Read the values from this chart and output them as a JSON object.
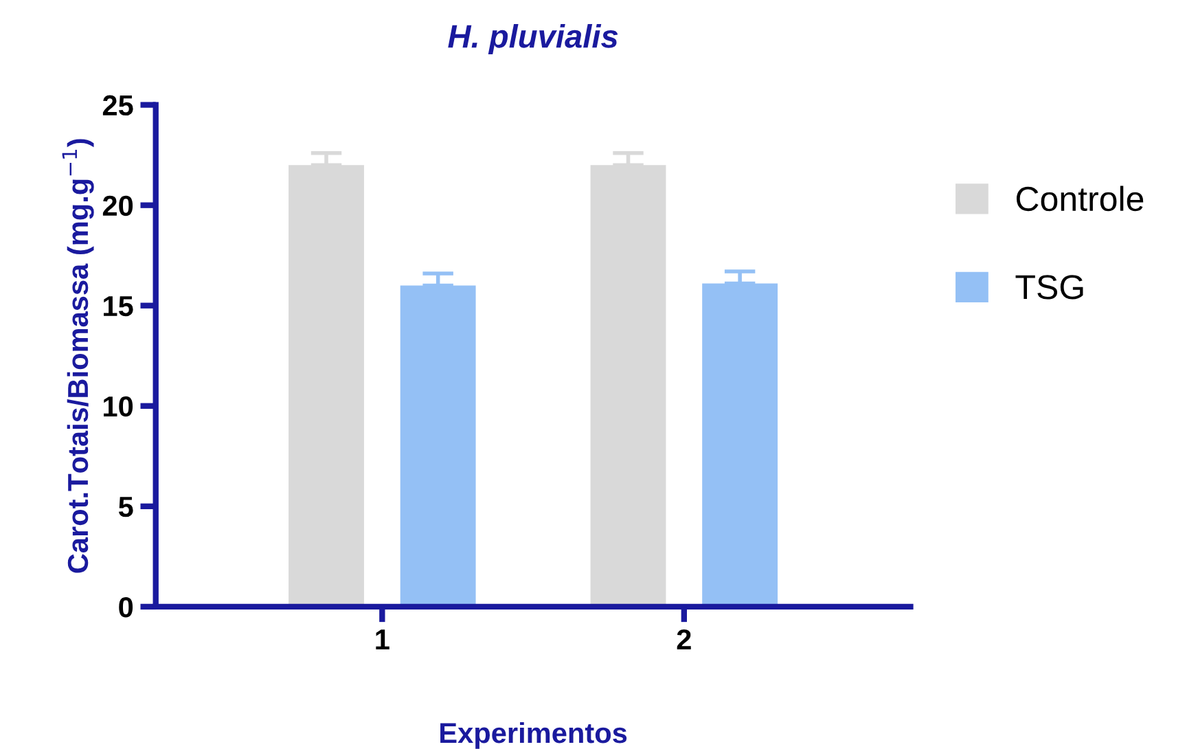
{
  "chart_data": {
    "type": "bar",
    "title": "H. pluvialis",
    "xlabel": "Experimentos",
    "ylabel": "Carot.Totais/Biomassa (mg.g$^{−1}$)",
    "categories": [
      "1",
      "2"
    ],
    "series": [
      {
        "name": "Controle",
        "color": "#d9d9d9",
        "values": [
          22.0,
          22.0
        ],
        "errors": [
          [
            22.0,
            22.6
          ],
          [
            22.0,
            22.6
          ]
        ]
      },
      {
        "name": "TSG",
        "color": "#94c0f5",
        "values": [
          16.0,
          16.1
        ],
        "errors": [
          [
            16.0,
            16.6
          ],
          [
            16.1,
            16.7
          ]
        ]
      }
    ],
    "ylim": [
      0,
      25
    ],
    "yticks": [
      0,
      5,
      10,
      15,
      20,
      25
    ],
    "grid": false,
    "legend": "right"
  }
}
